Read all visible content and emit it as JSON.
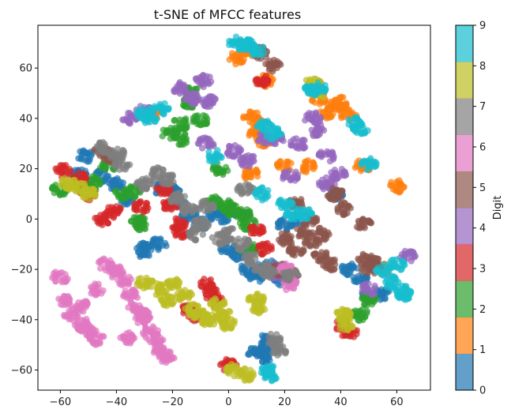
{
  "chart_data": {
    "type": "scatter",
    "title": "t-SNE of MFCC features",
    "xlabel": "",
    "ylabel": "",
    "xlim": [
      -68,
      72
    ],
    "ylim": [
      -68,
      77
    ],
    "xticks": [
      -60,
      -40,
      -20,
      0,
      20,
      40,
      60
    ],
    "yticks": [
      -60,
      -40,
      -20,
      0,
      20,
      40,
      60
    ],
    "grid": false,
    "colorbar": {
      "label": "Digit",
      "range": [
        0,
        9
      ],
      "ticks": [
        0,
        1,
        2,
        3,
        4,
        5,
        6,
        7,
        8,
        9
      ],
      "colors": [
        "#1f77b4",
        "#ff7f0e",
        "#2ca02c",
        "#d62728",
        "#9467bd",
        "#8c564b",
        "#e377c2",
        "#7f7f7f",
        "#bcbd22",
        "#17becf"
      ]
    },
    "series": [
      {
        "name": "0",
        "color": "#1f77b4",
        "x": [
          -51,
          -53,
          -45,
          -40,
          -36,
          -30,
          -25,
          -20,
          -18,
          -14,
          -10,
          -5,
          -2,
          0,
          3,
          5,
          7,
          10,
          12,
          15,
          18,
          20,
          25,
          38,
          43,
          47,
          50,
          55,
          9,
          12,
          14,
          -30,
          -24,
          14
        ],
        "y": [
          25,
          18,
          17,
          14,
          8,
          -12,
          -10,
          11,
          7,
          1,
          -2,
          2,
          1,
          -12,
          -14,
          1,
          -20,
          -23,
          -20,
          -19,
          -24,
          -2,
          0,
          10,
          -20,
          -24,
          -30,
          -30,
          -53,
          -52,
          -48,
          -13,
          12,
          -55
        ]
      },
      {
        "name": "1",
        "color": "#ff7f0e",
        "x": [
          -27,
          3,
          7,
          8,
          11,
          10,
          13,
          20,
          28,
          31,
          32,
          35,
          38,
          40,
          43,
          48,
          60,
          55,
          8,
          13
        ],
        "y": [
          42,
          64,
          67,
          41,
          38,
          34,
          31,
          21,
          21,
          53,
          48,
          42,
          45,
          46,
          41,
          21,
          13,
          -20,
          18,
          55
        ]
      },
      {
        "name": "2",
        "color": "#2ca02c",
        "x": [
          -60,
          -50,
          -48,
          -43,
          -38,
          -34,
          -31,
          -21,
          -17,
          -13,
          -14,
          -10,
          -5,
          0,
          5,
          7,
          -32,
          -17,
          -3,
          2,
          7,
          50,
          47
        ],
        "y": [
          12,
          12,
          15,
          21,
          10,
          11,
          -2,
          34,
          32,
          50,
          46,
          39,
          7,
          5,
          2,
          -12,
          -1,
          38,
          20,
          3,
          -2,
          -32,
          -38
        ]
      },
      {
        "name": "3",
        "color": "#d62728",
        "x": [
          -59,
          -53,
          -50,
          -45,
          -41,
          -31,
          -23,
          -21,
          -18,
          -17,
          -14,
          -12,
          10,
          13,
          -8,
          -6,
          -4,
          0,
          40,
          43,
          12
        ],
        "y": [
          19,
          16,
          10,
          0,
          3,
          5,
          12,
          6,
          -2,
          -5,
          -36,
          -38,
          -5,
          -12,
          -26,
          -30,
          -33,
          -58,
          -42,
          -45,
          55
        ]
      },
      {
        "name": "4",
        "color": "#9467bd",
        "x": [
          -17,
          -13,
          -9,
          -7,
          2,
          7,
          13,
          17,
          22,
          25,
          30,
          32,
          35,
          39,
          16,
          18,
          -30,
          -35,
          -8,
          35,
          50,
          64
        ],
        "y": [
          52,
          48,
          55,
          47,
          27,
          23,
          32,
          32,
          17,
          30,
          40,
          35,
          25,
          18,
          -20,
          -22,
          43,
          40,
          30,
          14,
          -28,
          -15
        ]
      },
      {
        "name": "5",
        "color": "#8c564b",
        "x": [
          -45,
          12,
          16,
          20,
          24,
          27,
          29,
          30,
          33,
          36,
          38,
          41,
          48,
          49,
          50,
          52,
          33,
          24,
          -42,
          18,
          22
        ],
        "y": [
          27,
          66,
          61,
          -8,
          -12,
          -5,
          0,
          -9,
          -15,
          -18,
          10,
          4,
          -2,
          -16,
          -20,
          -18,
          -6,
          6,
          25,
          -20,
          -22
        ]
      },
      {
        "name": "6",
        "color": "#e377c2",
        "x": [
          -60,
          -58,
          -52,
          -50,
          -47,
          -44,
          -40,
          -37,
          -33,
          -31,
          -30,
          -28,
          -26,
          -24,
          -22,
          -47,
          -52,
          -56,
          20,
          22,
          -35,
          -36
        ],
        "y": [
          -23,
          -32,
          -42,
          -44,
          -48,
          -18,
          -21,
          -24,
          -35,
          -38,
          -40,
          -45,
          -48,
          -52,
          -55,
          -28,
          -35,
          -38,
          -20,
          -26,
          -30,
          -47
        ]
      },
      {
        "name": "7",
        "color": "#7f7f7f",
        "x": [
          -45,
          -30,
          -22,
          -18,
          -14,
          -12,
          -10,
          -8,
          -3,
          0,
          5,
          8,
          12,
          14,
          16,
          18,
          -40,
          -38,
          -25,
          6,
          22
        ],
        "y": [
          28,
          14,
          16,
          8,
          4,
          -6,
          -2,
          5,
          -8,
          -6,
          -10,
          -16,
          -20,
          -21,
          -48,
          -52,
          26,
          22,
          18,
          12,
          -22
        ]
      },
      {
        "name": "8",
        "color": "#bcbd22",
        "x": [
          -57,
          -53,
          -50,
          -30,
          -25,
          -22,
          -20,
          -16,
          -13,
          -10,
          -7,
          -4,
          -2,
          0,
          2,
          6,
          10,
          11,
          41,
          42,
          30,
          32
        ],
        "y": [
          14,
          12,
          10,
          -25,
          -28,
          -32,
          -26,
          -30,
          -36,
          -38,
          -40,
          -34,
          -38,
          -42,
          -60,
          -62,
          -32,
          -35,
          -38,
          -42,
          54,
          50
        ]
      },
      {
        "name": "9",
        "color": "#17becf",
        "x": [
          -30,
          -28,
          -24,
          3,
          6,
          10,
          13,
          16,
          20,
          23,
          27,
          29,
          32,
          45,
          47,
          50,
          55,
          58,
          60,
          62,
          63,
          15,
          14,
          8,
          12,
          -5
        ],
        "y": [
          42,
          40,
          44,
          70,
          69,
          67,
          37,
          34,
          6,
          2,
          2,
          51,
          52,
          38,
          36,
          22,
          -20,
          -25,
          -18,
          -28,
          -30,
          -62,
          -60,
          69,
          10,
          25
        ]
      }
    ]
  }
}
